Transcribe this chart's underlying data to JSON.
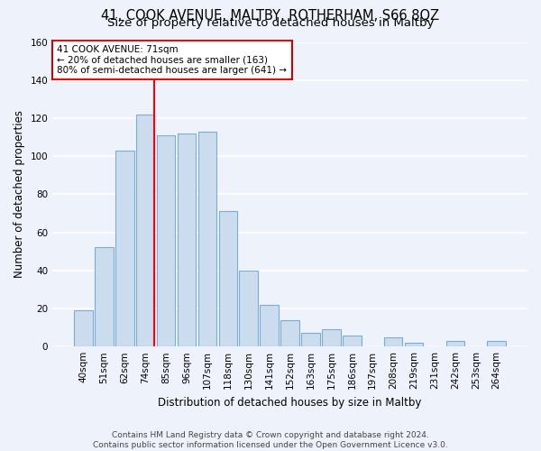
{
  "title": "41, COOK AVENUE, MALTBY, ROTHERHAM, S66 8QZ",
  "subtitle": "Size of property relative to detached houses in Maltby",
  "xlabel": "Distribution of detached houses by size in Maltby",
  "ylabel": "Number of detached properties",
  "bar_labels": [
    "40sqm",
    "51sqm",
    "62sqm",
    "74sqm",
    "85sqm",
    "96sqm",
    "107sqm",
    "118sqm",
    "130sqm",
    "141sqm",
    "152sqm",
    "163sqm",
    "175sqm",
    "186sqm",
    "197sqm",
    "208sqm",
    "219sqm",
    "231sqm",
    "242sqm",
    "253sqm",
    "264sqm"
  ],
  "bar_values": [
    19,
    52,
    103,
    122,
    111,
    112,
    113,
    71,
    40,
    22,
    14,
    7,
    9,
    6,
    0,
    5,
    2,
    0,
    3,
    0,
    3
  ],
  "bar_color": "#ccdcef",
  "bar_edge_color": "#7aadd4",
  "vline_color": "red",
  "ylim": [
    0,
    160
  ],
  "yticks": [
    0,
    20,
    40,
    60,
    80,
    100,
    120,
    140,
    160
  ],
  "annotation_title": "41 COOK AVENUE: 71sqm",
  "annotation_line1": "← 20% of detached houses are smaller (163)",
  "annotation_line2": "80% of semi-detached houses are larger (641) →",
  "annotation_box_color": "white",
  "annotation_box_edge": "#cc0000",
  "footer1": "Contains HM Land Registry data © Crown copyright and database right 2024.",
  "footer2": "Contains public sector information licensed under the Open Government Licence v3.0.",
  "background_color": "#eef2fa",
  "grid_color": "white",
  "title_fontsize": 10.5,
  "subtitle_fontsize": 9.5,
  "axis_label_fontsize": 8.5,
  "tick_fontsize": 7.5,
  "annotation_fontsize": 7.5,
  "footer_fontsize": 6.5
}
